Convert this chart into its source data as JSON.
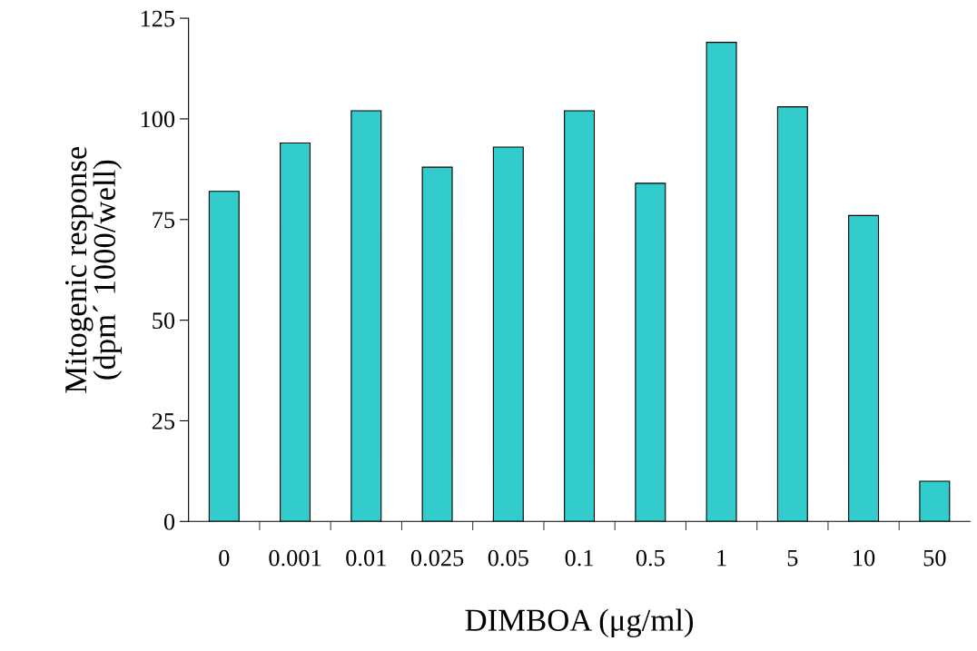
{
  "chart_data": {
    "type": "bar",
    "xlabel": "DIMBOA (μg/ml)",
    "ylabel": "Mitogenic response\n(dpm´ 1000/well)",
    "categories": [
      "0",
      "0.001",
      "0.01",
      "0.025",
      "0.05",
      "0.1",
      "0.5",
      "1",
      "5",
      "10",
      "50"
    ],
    "values": [
      82,
      94,
      102,
      88,
      93,
      102,
      84,
      119,
      103,
      76,
      10
    ],
    "color": "#33cccc",
    "ylim": [
      0,
      125
    ],
    "yticks": [
      0,
      25,
      50,
      75,
      100,
      125
    ],
    "grid": false
  }
}
